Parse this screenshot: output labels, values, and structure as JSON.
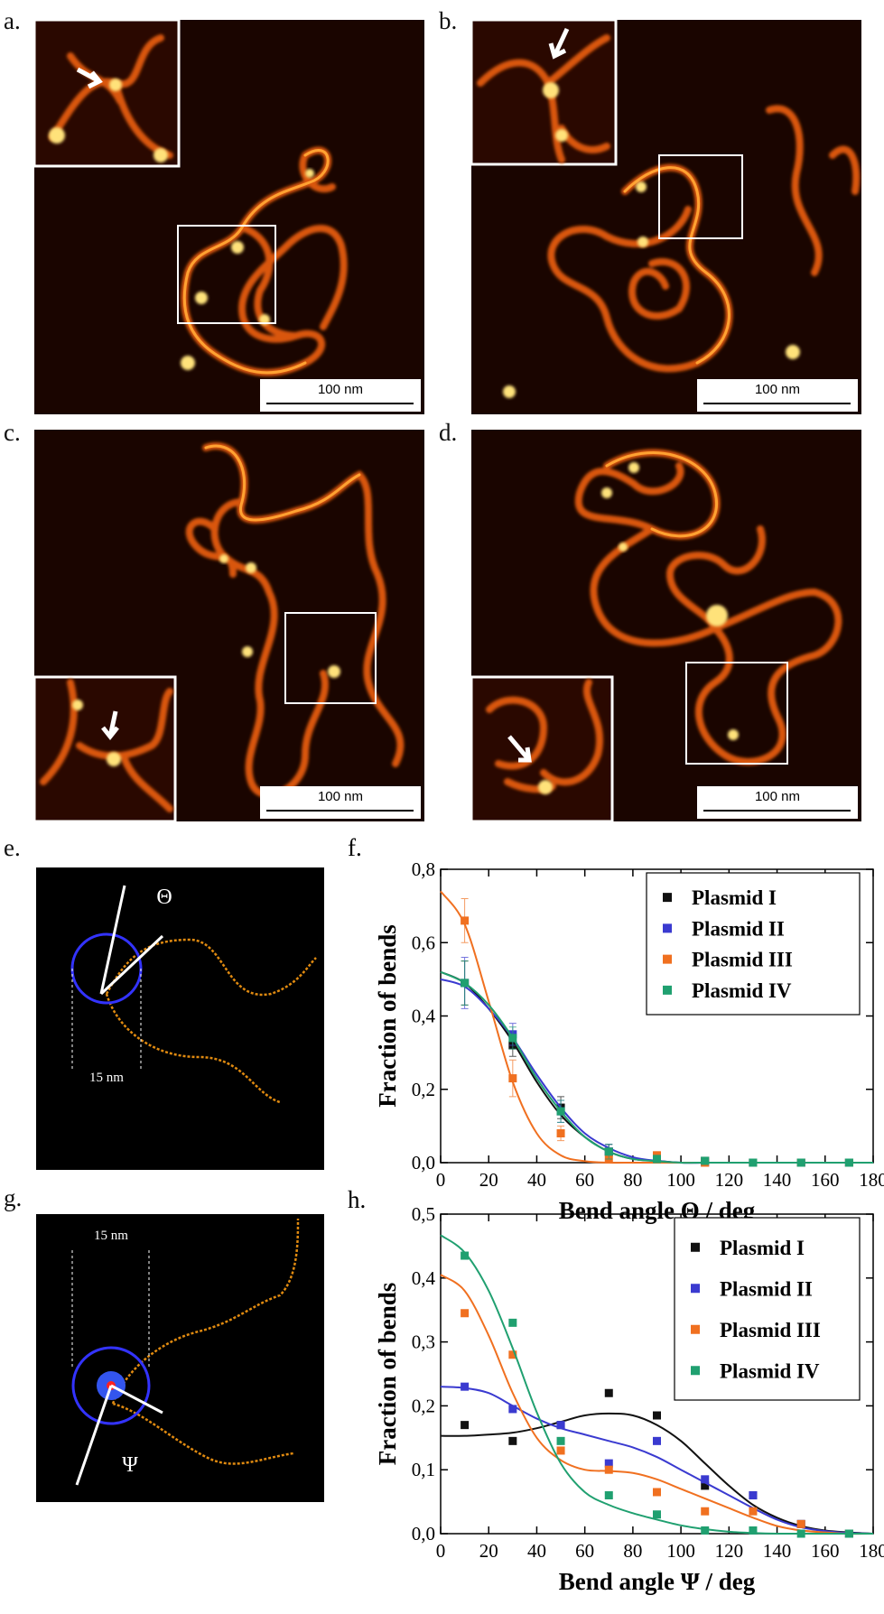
{
  "panels": {
    "a": {
      "label": "a.",
      "scale_bar": "100 nm"
    },
    "b": {
      "label": "b.",
      "scale_bar": "100 nm"
    },
    "c": {
      "label": "c.",
      "scale_bar": "100 nm"
    },
    "d": {
      "label": "d.",
      "scale_bar": "100 nm"
    },
    "e": {
      "label": "e.",
      "symbol": "Θ",
      "length": "15 nm"
    },
    "g": {
      "label": "g.",
      "symbol": "Ψ",
      "length": "15 nm"
    }
  },
  "chart_data": [
    {
      "type": "scatter",
      "panel_label": "f.",
      "xlabel": "Bend angle Θ / deg",
      "ylabel": "Fraction of bends",
      "xlim": [
        0,
        180
      ],
      "xticks": [
        0,
        20,
        40,
        60,
        80,
        100,
        120,
        140,
        160,
        180
      ],
      "ylim": [
        0,
        0.8
      ],
      "yticks": [
        {
          "value": 0,
          "label": "0,0"
        },
        {
          "value": 0.2,
          "label": "0,2"
        },
        {
          "value": 0.4,
          "label": "0,4"
        },
        {
          "value": 0.6,
          "label": "0,6"
        },
        {
          "value": 0.8,
          "label": "0,8"
        }
      ],
      "legend": "upper right",
      "x": [
        10,
        30,
        50,
        70,
        90,
        110,
        130,
        150,
        170
      ],
      "fit_x": [
        0,
        10,
        20,
        30,
        40,
        50,
        60,
        70,
        80,
        90,
        100,
        110,
        120,
        130,
        140,
        150,
        160,
        170,
        180
      ],
      "series": [
        {
          "name": "Plasmid I",
          "color": "#111111",
          "values": [
            0.49,
            0.32,
            0.15,
            0.03,
            0.01,
            0.005,
            0,
            0,
            0
          ],
          "errors": [
            0.06,
            0.03,
            0.03,
            0.02,
            0.01,
            0,
            0,
            0,
            0
          ],
          "fit": [
            0.52,
            0.49,
            0.42,
            0.33,
            0.22,
            0.13,
            0.07,
            0.03,
            0.01,
            0.005,
            0,
            0,
            0,
            0,
            0,
            0,
            0,
            0,
            0
          ]
        },
        {
          "name": "Plasmid II",
          "color": "#3a3ad0",
          "values": [
            0.49,
            0.35,
            0.14,
            0.03,
            0.01,
            0,
            0,
            0,
            0
          ],
          "errors": [
            0.07,
            0.03,
            0.03,
            0.02,
            0.01,
            0,
            0,
            0,
            0
          ],
          "fit": [
            0.5,
            0.48,
            0.42,
            0.34,
            0.24,
            0.15,
            0.08,
            0.04,
            0.015,
            0.005,
            0,
            0,
            0,
            0,
            0,
            0,
            0,
            0,
            0
          ]
        },
        {
          "name": "Plasmid III",
          "color": "#f07020",
          "values": [
            0.66,
            0.23,
            0.08,
            0.01,
            0.02,
            0,
            0,
            0,
            0
          ],
          "errors": [
            0.06,
            0.05,
            0.02,
            0.01,
            0.01,
            0,
            0,
            0,
            0
          ],
          "fit": [
            0.74,
            0.65,
            0.44,
            0.22,
            0.08,
            0.02,
            0.004,
            0,
            0,
            0,
            0,
            0,
            0,
            0,
            0,
            0,
            0,
            0,
            0
          ]
        },
        {
          "name": "Plasmid IV",
          "color": "#20a070",
          "values": [
            0.49,
            0.34,
            0.14,
            0.03,
            0.01,
            0.005,
            0,
            0,
            0
          ],
          "errors": [
            0.06,
            0.03,
            0.03,
            0.02,
            0.01,
            0,
            0,
            0,
            0
          ],
          "fit": [
            0.52,
            0.49,
            0.43,
            0.34,
            0.23,
            0.14,
            0.07,
            0.03,
            0.01,
            0.004,
            0,
            0,
            0,
            0,
            0,
            0,
            0,
            0,
            0
          ]
        }
      ]
    },
    {
      "type": "scatter",
      "panel_label": "h.",
      "xlabel": "Bend angle Ψ /  deg",
      "ylabel": "Fraction of bends",
      "xlim": [
        0,
        180
      ],
      "xticks": [
        0,
        20,
        40,
        60,
        80,
        100,
        120,
        140,
        160,
        180
      ],
      "ylim": [
        0,
        0.5
      ],
      "yticks": [
        {
          "value": 0,
          "label": "0,0"
        },
        {
          "value": 0.1,
          "label": "0,1"
        },
        {
          "value": 0.2,
          "label": "0,2"
        },
        {
          "value": 0.3,
          "label": "0,3"
        },
        {
          "value": 0.4,
          "label": "0,4"
        },
        {
          "value": 0.5,
          "label": "0,5"
        }
      ],
      "legend": "upper right",
      "x": [
        10,
        30,
        50,
        70,
        90,
        110,
        130,
        150,
        170
      ],
      "fit_x": [
        0,
        10,
        20,
        30,
        40,
        50,
        60,
        70,
        80,
        90,
        100,
        110,
        120,
        130,
        140,
        150,
        160,
        170,
        180
      ],
      "series": [
        {
          "name": "Plasmid I",
          "color": "#111111",
          "values": [
            0.17,
            0.145,
            0.17,
            0.22,
            0.185,
            0.075,
            0.06,
            0.015,
            0
          ],
          "fit": [
            0.153,
            0.153,
            0.155,
            0.158,
            0.165,
            0.175,
            0.185,
            0.188,
            0.185,
            0.17,
            0.145,
            0.11,
            0.075,
            0.045,
            0.025,
            0.012,
            0.005,
            0.002,
            0
          ]
        },
        {
          "name": "Plasmid II",
          "color": "#3a3ad0",
          "values": [
            0.23,
            0.195,
            0.17,
            0.11,
            0.145,
            0.085,
            0.06,
            0.015,
            0
          ],
          "fit": [
            0.23,
            0.228,
            0.22,
            0.2,
            0.18,
            0.165,
            0.155,
            0.145,
            0.135,
            0.12,
            0.1,
            0.08,
            0.06,
            0.04,
            0.022,
            0.01,
            0.004,
            0.001,
            0
          ]
        },
        {
          "name": "Plasmid III",
          "color": "#f07020",
          "values": [
            0.345,
            0.28,
            0.13,
            0.1,
            0.065,
            0.035,
            0.035,
            0.015,
            0
          ],
          "fit": [
            0.405,
            0.38,
            0.31,
            0.22,
            0.15,
            0.115,
            0.1,
            0.098,
            0.095,
            0.085,
            0.07,
            0.055,
            0.04,
            0.025,
            0.012,
            0.005,
            0.002,
            0,
            0
          ]
        },
        {
          "name": "Plasmid IV",
          "color": "#20a070",
          "values": [
            0.435,
            0.33,
            0.145,
            0.06,
            0.03,
            0.005,
            0.005,
            0,
            0
          ],
          "fit": [
            0.467,
            0.44,
            0.38,
            0.29,
            0.19,
            0.11,
            0.065,
            0.045,
            0.032,
            0.022,
            0.013,
            0.007,
            0.003,
            0.001,
            0,
            0,
            0,
            0,
            0
          ]
        }
      ]
    }
  ]
}
